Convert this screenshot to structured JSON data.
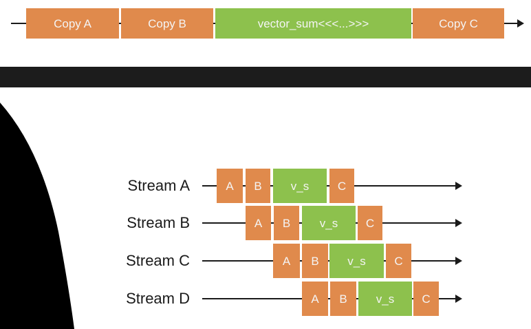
{
  "serial": {
    "steps": [
      {
        "label": "Copy A",
        "kind": "copy"
      },
      {
        "label": "Copy B",
        "kind": "copy"
      },
      {
        "label": "vector_sum<<<...>>>",
        "kind": "kernel"
      },
      {
        "label": "Copy C",
        "kind": "copy"
      }
    ]
  },
  "streams": [
    {
      "name": "Stream A",
      "steps": [
        {
          "label": "A",
          "kind": "copy"
        },
        {
          "label": "B",
          "kind": "copy"
        },
        {
          "label": "v_s",
          "kind": "kernel"
        },
        {
          "label": "C",
          "kind": "copy"
        }
      ]
    },
    {
      "name": "Stream B",
      "steps": [
        {
          "label": "A",
          "kind": "copy"
        },
        {
          "label": "B",
          "kind": "copy"
        },
        {
          "label": "v_s",
          "kind": "kernel"
        },
        {
          "label": "C",
          "kind": "copy"
        }
      ]
    },
    {
      "name": "Stream C",
      "steps": [
        {
          "label": "A",
          "kind": "copy"
        },
        {
          "label": "B",
          "kind": "copy"
        },
        {
          "label": "v_s",
          "kind": "kernel"
        },
        {
          "label": "C",
          "kind": "copy"
        }
      ]
    },
    {
      "name": "Stream D",
      "steps": [
        {
          "label": "A",
          "kind": "copy"
        },
        {
          "label": "B",
          "kind": "copy"
        },
        {
          "label": "v_s",
          "kind": "kernel"
        },
        {
          "label": "C",
          "kind": "copy"
        }
      ]
    }
  ],
  "colors": {
    "copy": "#e08a4c",
    "kernel": "#8dc14d",
    "line": "#1a1a1a",
    "text_on_box": "#f4f4f4"
  }
}
